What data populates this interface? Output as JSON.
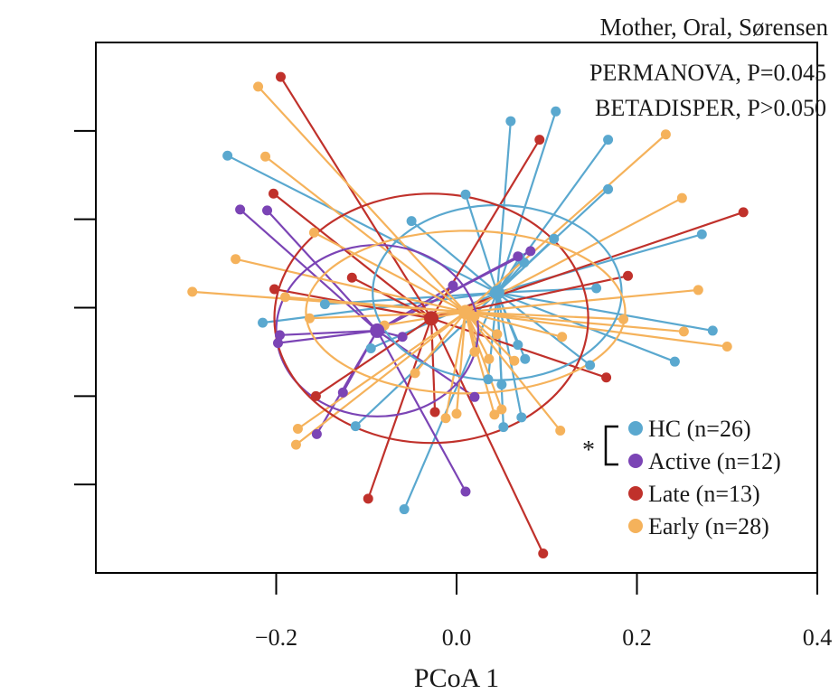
{
  "chart_data": {
    "type": "scatter",
    "subtitle": "Mother, Oral, Sørensen",
    "xlabel": "PCoA 1",
    "ylabel": "",
    "xlim": [
      -0.4,
      0.4
    ],
    "ylim": [
      -0.3,
      0.3
    ],
    "xticks": [
      -0.2,
      0.0,
      0.2,
      0.4
    ],
    "xtick_labels": [
      "−0.2",
      "0.0",
      "0.2",
      "0.4"
    ],
    "yticks": [
      -0.2,
      -0.1,
      0.0,
      0.1,
      0.2
    ],
    "stats": [
      "PERMANOVA, P=0.045",
      "BETADISPER, P>0.050"
    ],
    "legend_position": "bottom-right",
    "significance_marker": "*",
    "groups": [
      {
        "name": "HC (n=26)",
        "color": "#5aa8cf",
        "centroid": [
          0.045,
          0.017
        ],
        "ellipse": {
          "rx": 0.138,
          "ry": 0.099,
          "angle": 0
        },
        "points": [
          [
            0.06,
            0.211
          ],
          [
            0.11,
            0.222
          ],
          [
            0.168,
            0.19
          ],
          [
            0.168,
            0.134
          ],
          [
            -0.254,
            0.172
          ],
          [
            0.01,
            0.128
          ],
          [
            -0.05,
            0.098
          ],
          [
            0.108,
            0.078
          ],
          [
            0.272,
            0.083
          ],
          [
            0.07,
            0.057
          ],
          [
            0.075,
            0.051
          ],
          [
            0.155,
            0.022
          ],
          [
            -0.146,
            0.004
          ],
          [
            -0.215,
            -0.017
          ],
          [
            0.284,
            -0.026
          ],
          [
            -0.095,
            -0.046
          ],
          [
            0.068,
            -0.042
          ],
          [
            0.076,
            -0.058
          ],
          [
            0.148,
            -0.065
          ],
          [
            0.242,
            -0.061
          ],
          [
            0.035,
            -0.081
          ],
          [
            0.05,
            -0.087
          ],
          [
            -0.112,
            -0.134
          ],
          [
            0.052,
            -0.135
          ],
          [
            0.072,
            -0.124
          ],
          [
            -0.058,
            -0.228
          ]
        ]
      },
      {
        "name": "Active (n=12)",
        "color": "#7b44b5",
        "centroid": [
          -0.088,
          -0.026
        ],
        "ellipse": {
          "rx": 0.112,
          "ry": 0.097,
          "angle": 0
        },
        "points": [
          [
            -0.24,
            0.111
          ],
          [
            -0.21,
            0.11
          ],
          [
            0.082,
            0.064
          ],
          [
            0.068,
            0.058
          ],
          [
            -0.004,
            0.025
          ],
          [
            -0.196,
            -0.031
          ],
          [
            -0.198,
            -0.04
          ],
          [
            -0.06,
            -0.033
          ],
          [
            -0.126,
            -0.096
          ],
          [
            0.02,
            -0.101
          ],
          [
            -0.155,
            -0.143
          ],
          [
            0.01,
            -0.208
          ]
        ]
      },
      {
        "name": "Late (n=13)",
        "color": "#c0312b",
        "centroid": [
          -0.028,
          -0.012
        ],
        "ellipse": {
          "rx": 0.174,
          "ry": 0.141,
          "angle": 0
        },
        "points": [
          [
            -0.195,
            0.261
          ],
          [
            0.092,
            0.19
          ],
          [
            -0.203,
            0.129
          ],
          [
            0.318,
            0.108
          ],
          [
            0.19,
            0.036
          ],
          [
            -0.116,
            0.034
          ],
          [
            -0.202,
            0.021
          ],
          [
            -0.03,
            -0.014
          ],
          [
            0.166,
            -0.079
          ],
          [
            -0.156,
            -0.1
          ],
          [
            -0.024,
            -0.118
          ],
          [
            -0.098,
            -0.216
          ],
          [
            0.096,
            -0.278
          ]
        ]
      },
      {
        "name": "Early (n=28)",
        "color": "#f5b25b",
        "centroid": [
          0.01,
          -0.005
        ],
        "ellipse": {
          "rx": 0.177,
          "ry": 0.092,
          "angle": 0
        },
        "points": [
          [
            -0.22,
            0.25
          ],
          [
            -0.212,
            0.171
          ],
          [
            0.232,
            0.196
          ],
          [
            0.25,
            0.124
          ],
          [
            -0.158,
            0.085
          ],
          [
            -0.245,
            0.055
          ],
          [
            -0.293,
            0.018
          ],
          [
            0.268,
            0.02
          ],
          [
            -0.19,
            0.012
          ],
          [
            0.185,
            -0.013
          ],
          [
            -0.163,
            -0.012
          ],
          [
            0.252,
            -0.027
          ],
          [
            0.3,
            -0.044
          ],
          [
            0.117,
            -0.033
          ],
          [
            -0.046,
            -0.074
          ],
          [
            0.02,
            -0.05
          ],
          [
            0.036,
            -0.058
          ],
          [
            0.064,
            -0.06
          ],
          [
            -0.176,
            -0.137
          ],
          [
            0.042,
            -0.121
          ],
          [
            -0.178,
            -0.155
          ],
          [
            0.115,
            -0.139
          ],
          [
            0.0,
            -0.12
          ],
          [
            -0.012,
            -0.125
          ],
          [
            0.05,
            -0.115
          ],
          [
            -0.08,
            -0.02
          ],
          [
            0.045,
            -0.03
          ],
          [
            0.02,
            -0.01
          ]
        ]
      }
    ]
  }
}
